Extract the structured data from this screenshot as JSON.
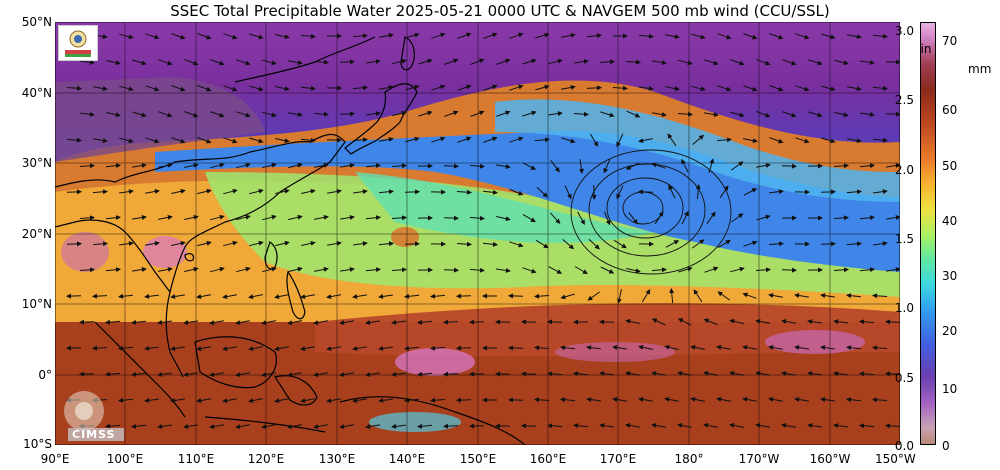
{
  "title": "SSEC Total Precipitable Water  2025-05-21 0000 UTC & NAVGEM 500 mb wind (CCU/SSL)",
  "latitude_labels": [
    "50°N",
    "40°N",
    "30°N",
    "20°N",
    "10°N",
    "0°",
    "10°S"
  ],
  "longitude_labels": [
    "90°E",
    "100°E",
    "110°E",
    "120°E",
    "130°E",
    "140°E",
    "150°E",
    "160°E",
    "170°E",
    "180°",
    "170°W",
    "160°W",
    "150°W"
  ],
  "colorbar": {
    "in_unit": "in",
    "mm_unit": "mm",
    "in_ticks": [
      "3.0",
      "2.5",
      "2.0",
      "1.5",
      "1.0",
      "0.5",
      "0.0"
    ],
    "mm_ticks": [
      "70",
      "60",
      "50",
      "40",
      "30",
      "20",
      "10",
      "0"
    ]
  },
  "logos": {
    "ssec": "SSEC logo",
    "cimss": "CIMSS"
  },
  "colors": {
    "very_dry": "#7a2a9a",
    "dry": "#3f7fe6",
    "moderate": "#6fe0a0",
    "moist": "#f0a030",
    "very_moist": "#b04020",
    "saturated": "#d070c0",
    "land_outline": "#000000"
  }
}
